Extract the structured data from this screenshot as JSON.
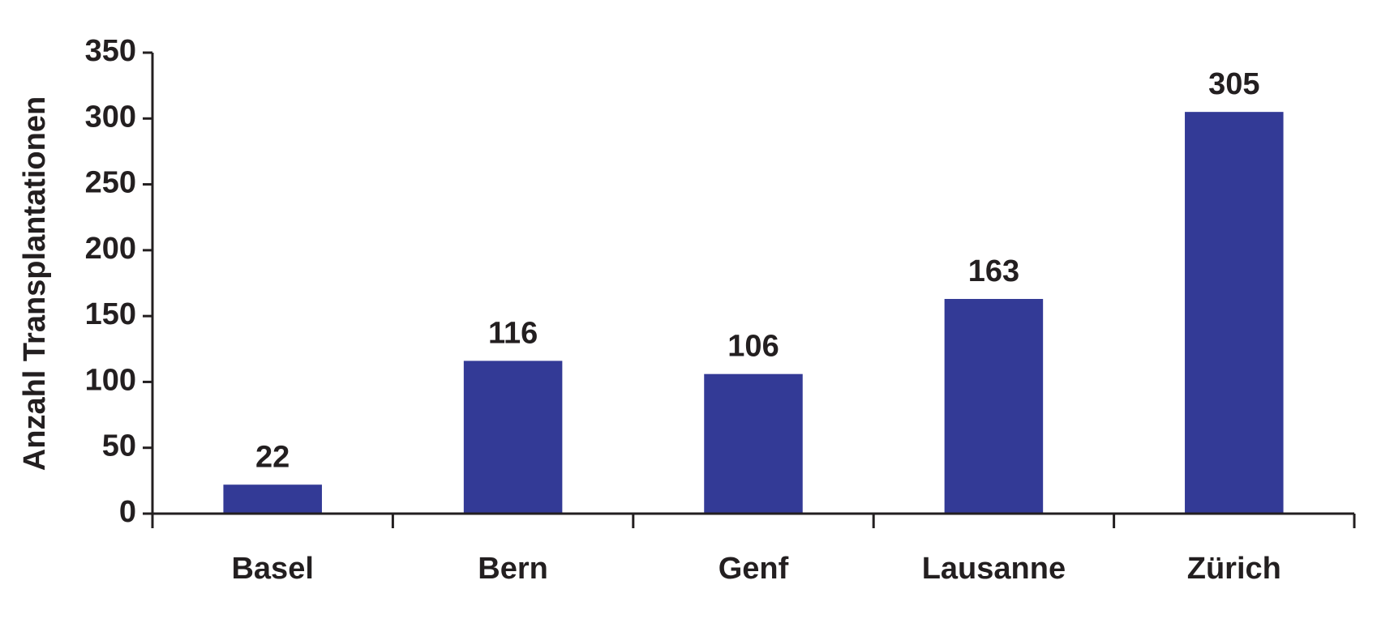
{
  "chart_data": {
    "type": "bar",
    "y_label": "Anzahl Transplantationen",
    "categories": [
      "Basel",
      "Bern",
      "Genf",
      "Lausanne",
      "Zürich"
    ],
    "values": [
      22,
      116,
      106,
      163,
      305
    ],
    "color": "#333a96",
    "ylim": [
      0,
      350
    ],
    "yticks": [
      0,
      50,
      100,
      150,
      200,
      250,
      300,
      350
    ],
    "grid": false
  }
}
